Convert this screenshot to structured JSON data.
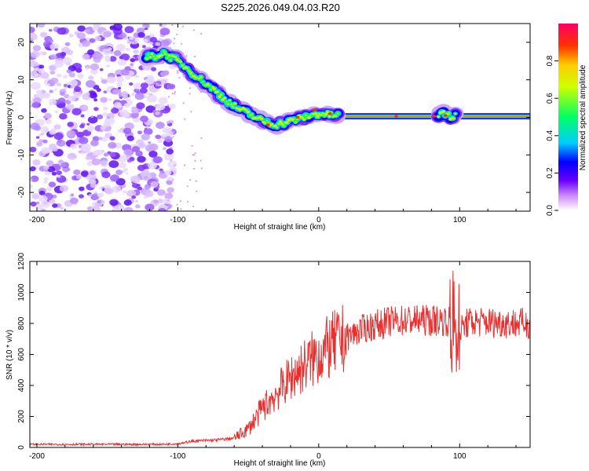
{
  "title": "S225.2026.049.04.03.R20",
  "chart_data": [
    {
      "type": "heatmap",
      "name": "spectrogram",
      "xlabel": "Height of straight line (km)",
      "ylabel": "Frequency (Hz)",
      "xlim": [
        -205,
        150
      ],
      "ylim": [
        -25,
        25
      ],
      "xticks": [
        -200,
        -100,
        0,
        100
      ],
      "yticks": [
        -20,
        -10,
        0,
        10,
        20
      ],
      "colorbar": {
        "label": "Normalized spectral amplitude",
        "range": [
          0,
          1
        ],
        "ticks": [
          "0.0",
          "0.2",
          "0.4",
          "0.6",
          "0.8"
        ],
        "colors": [
          "#ffffff",
          "#cc88ff",
          "#6600ff",
          "#0000ff",
          "#00ccff",
          "#00ff66",
          "#ccff00",
          "#ffcc00",
          "#ff3300",
          "#ff0066"
        ]
      },
      "noise_region_x": [
        -205,
        -103
      ],
      "trace": {
        "x": [
          -120,
          -110,
          -100,
          -90,
          -80,
          -70,
          -60,
          -50,
          -40,
          -30,
          -20,
          -10,
          0,
          10,
          20,
          50,
          80,
          90,
          95,
          100,
          150
        ],
        "y": [
          16,
          17,
          15,
          12,
          9,
          6,
          3,
          1,
          -1,
          -2,
          -1,
          0,
          1,
          0.5,
          0.3,
          0.3,
          0.3,
          1,
          0,
          0,
          0
        ]
      }
    },
    {
      "type": "line",
      "name": "snr",
      "xlabel": "Height of straight line (km)",
      "ylabel": "SNR (10 * v/v)",
      "xlim": [
        -205,
        150
      ],
      "ylim": [
        0,
        1200
      ],
      "xticks": [
        -200,
        -100,
        0,
        100
      ],
      "yticks": [
        0,
        200,
        400,
        600,
        800,
        1000,
        1200
      ],
      "color": "#e83030",
      "envelope": {
        "x": [
          -205,
          -110,
          -100,
          -90,
          -70,
          -60,
          -50,
          -40,
          -30,
          -20,
          -10,
          0,
          10,
          20,
          30,
          40,
          50,
          60,
          80,
          90,
          95,
          98,
          100,
          105,
          110,
          150
        ],
        "y": [
          20,
          20,
          25,
          40,
          50,
          60,
          120,
          250,
          350,
          450,
          530,
          600,
          660,
          710,
          760,
          790,
          810,
          820,
          820,
          820,
          800,
          700,
          750,
          800,
          810,
          800
        ]
      }
    }
  ]
}
